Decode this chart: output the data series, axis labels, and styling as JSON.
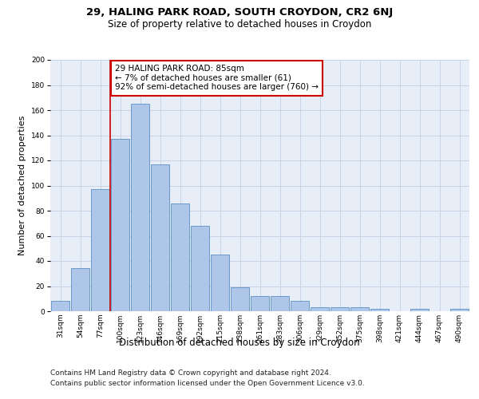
{
  "title_line1": "29, HALING PARK ROAD, SOUTH CROYDON, CR2 6NJ",
  "title_line2": "Size of property relative to detached houses in Croydon",
  "xlabel": "Distribution of detached houses by size in Croydon",
  "ylabel": "Number of detached properties",
  "categories": [
    "31sqm",
    "54sqm",
    "77sqm",
    "100sqm",
    "123sqm",
    "146sqm",
    "169sqm",
    "192sqm",
    "215sqm",
    "238sqm",
    "261sqm",
    "283sqm",
    "306sqm",
    "329sqm",
    "352sqm",
    "375sqm",
    "398sqm",
    "421sqm",
    "444sqm",
    "467sqm",
    "490sqm"
  ],
  "values": [
    8,
    34,
    97,
    137,
    165,
    117,
    86,
    68,
    45,
    19,
    12,
    12,
    8,
    3,
    3,
    3,
    2,
    0,
    2,
    0,
    2
  ],
  "bar_color": "#aec6e8",
  "bar_edge_color": "#5a8fc2",
  "annotation_text_line1": "29 HALING PARK ROAD: 85sqm",
  "annotation_text_line2": "← 7% of detached houses are smaller (61)",
  "annotation_text_line3": "92% of semi-detached houses are larger (760) →",
  "annotation_box_color": "#ffffff",
  "annotation_box_edge": "#cc0000",
  "vline_color": "#cc0000",
  "grid_color": "#c8d4e8",
  "background_color": "#e8eef7",
  "ylim": [
    0,
    200
  ],
  "yticks": [
    0,
    20,
    40,
    60,
    80,
    100,
    120,
    140,
    160,
    180,
    200
  ],
  "title_fontsize": 9.5,
  "subtitle_fontsize": 8.5,
  "ylabel_fontsize": 8,
  "xlabel_fontsize": 8.5,
  "tick_fontsize": 6.5,
  "annotation_fontsize": 7.5,
  "footer_fontsize": 6.5
}
